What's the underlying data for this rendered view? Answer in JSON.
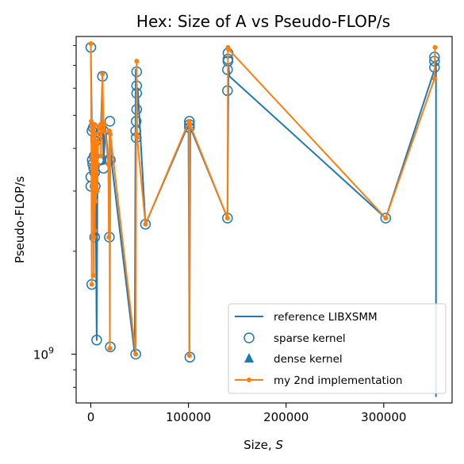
{
  "chart_data": {
    "type": "line",
    "title": "Hex: Size of A vs Pseudo-FLOP/s",
    "xlabel": "Size, ",
    "xlabel_italic": "S",
    "ylabel": "Pseudo-FLOP/s",
    "x_scale": "linear",
    "y_scale": "log",
    "xlim": [
      -15000,
      370000
    ],
    "ylim": [
      720000000,
      8500000000
    ],
    "x_ticks": [
      {
        "value": 0,
        "label": "0"
      },
      {
        "value": 100000,
        "label": "100000"
      },
      {
        "value": 200000,
        "label": "200000"
      },
      {
        "value": 300000,
        "label": "300000"
      }
    ],
    "y_ticks": [
      {
        "value": 1000000000,
        "base": "10",
        "exp": "9"
      }
    ],
    "y_minor_ticks": [
      800000000,
      900000000,
      2000000000,
      3000000000,
      4000000000,
      5000000000,
      6000000000,
      7000000000,
      8000000000
    ],
    "legend_position": "lower right",
    "legend": [
      {
        "label": "reference LIBXSMM",
        "marker": "line"
      },
      {
        "label": "sparse kernel",
        "marker": "open-circle"
      },
      {
        "label": "dense kernel",
        "marker": "triangle"
      },
      {
        "label": "my 2nd implementation",
        "marker": "line-dot"
      }
    ],
    "colors": {
      "reference": "#1f77b4",
      "sparse": "#1f77b4",
      "dense": "#1f77b4",
      "mine": "#ff7f0e"
    },
    "series": [
      {
        "name": "reference LIBXSMM",
        "x": [
          0,
          1200,
          1500,
          2500,
          3000,
          4000,
          4500,
          5000,
          6000,
          7000,
          10000,
          12000,
          13000,
          15000,
          18000,
          19000,
          20000,
          20500,
          45000,
          46000,
          47000,
          48000,
          56000,
          100000,
          101000,
          102000,
          140000,
          141000,
          142000,
          302000,
          352000,
          352500,
          353000,
          353500,
          353500
        ],
        "y": [
          7700000000,
          4500000000,
          3900000000,
          3500000000,
          3700000000,
          3200000000,
          2200000000,
          2900000000,
          1100000000,
          4200000000,
          4300000000,
          6500000000,
          3600000000,
          4600000000,
          3700000000,
          2200000000,
          4500000000,
          3800000000,
          1000000000,
          6800000000,
          4500000000,
          6000000000,
          2400000000,
          4700000000,
          980000000,
          4600000000,
          2500000000,
          7000000000,
          6500000000,
          2500000000,
          6800000000,
          6800000000,
          6900000000,
          7200000000,
          750000000
        ]
      },
      {
        "name": "sparse kernel",
        "x": [
          0,
          0,
          0,
          1000,
          1200,
          1500,
          2000,
          2500,
          3000,
          3500,
          4000,
          4000,
          4500,
          5000,
          5000,
          6000,
          8000,
          10000,
          10000,
          12000,
          13000,
          13000,
          18000,
          19000,
          19500,
          20000,
          20000,
          46000,
          46000,
          46500,
          46500,
          47000,
          47000,
          47000,
          47000,
          56000,
          101000,
          101000,
          101000,
          101500,
          140000,
          140000,
          140000,
          140500,
          140500,
          140500,
          302000,
          352000,
          352000,
          352000
        ],
        "y": [
          7900000000,
          3300000000,
          3100000000,
          1600000000,
          4500000000,
          3700000000,
          3600000000,
          4600000000,
          3500000000,
          3800000000,
          3400000000,
          2200000000,
          3100000000,
          4200000000,
          4300000000,
          1100000000,
          3700000000,
          4400000000,
          3700000000,
          6500000000,
          4500000000,
          3500000000,
          3700000000,
          2200000000,
          4800000000,
          3700000000,
          1050000000,
          1000000000,
          4500000000,
          4300000000,
          4800000000,
          5800000000,
          6100000000,
          6700000000,
          5200000000,
          2400000000,
          4700000000,
          4800000000,
          4600000000,
          980000000,
          2500000000,
          5900000000,
          6800000000,
          7200000000,
          7300000000,
          7600000000,
          2500000000,
          6900000000,
          7200000000,
          7400000000
        ]
      },
      {
        "name": "dense kernel",
        "x": [],
        "y": []
      },
      {
        "name": "my 2nd implementation",
        "x": [
          0,
          500,
          1000,
          1200,
          1500,
          2000,
          2200,
          2500,
          3000,
          3200,
          3500,
          4000,
          4200,
          4500,
          5000,
          5500,
          6000,
          6500,
          7000,
          8000,
          10000,
          10500,
          12000,
          13000,
          14000,
          18000,
          18500,
          19000,
          19500,
          20000,
          46000,
          46500,
          47000,
          47500,
          56000,
          100500,
          101000,
          101500,
          140000,
          140500,
          141000,
          302000,
          352000,
          352500
        ],
        "y": [
          8100000000,
          4800000000,
          1600000000,
          4600000000,
          3700000000,
          4500000000,
          3200000000,
          4200000000,
          1700000000,
          3800000000,
          2200000000,
          4700000000,
          2300000000,
          4400000000,
          2800000000,
          3500000000,
          4200000000,
          3000000000,
          3600000000,
          4600000000,
          4700000000,
          3800000000,
          6600000000,
          4500000000,
          4700000000,
          3600000000,
          2200000000,
          4500000000,
          1040000000,
          4400000000,
          1000000000,
          4400000000,
          7200000000,
          4300000000,
          2400000000,
          4800000000,
          990000000,
          4700000000,
          2500000000,
          7900000000,
          7800000000,
          2500000000,
          6400000000,
          7900000000
        ]
      }
    ]
  }
}
